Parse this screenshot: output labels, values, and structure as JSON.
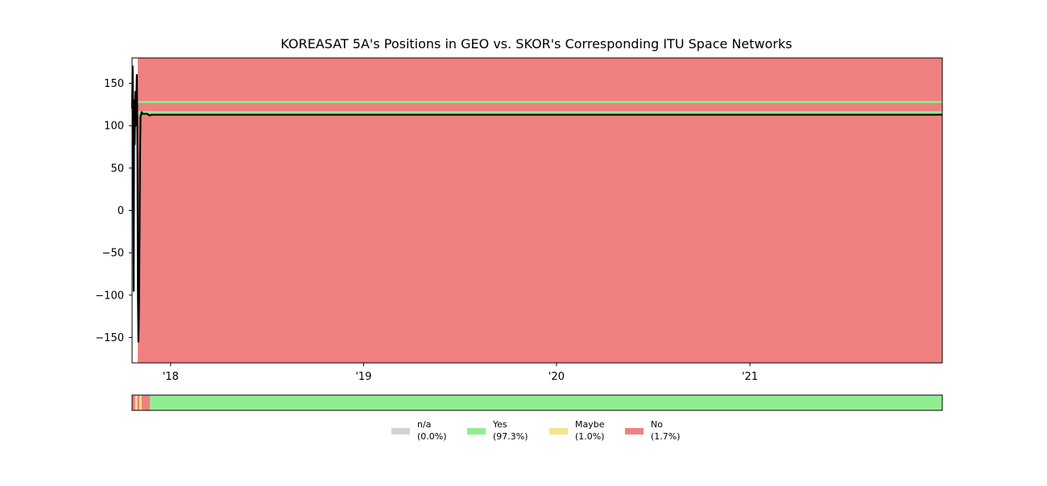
{
  "chart_data": {
    "type": "line",
    "title": "KOREASAT 5A's Positions in GEO vs. SKOR's Corresponding ITU Space Networks",
    "xlabel": "",
    "ylabel": "",
    "x_tick_labels": [
      "'18",
      "'19",
      "'20",
      "'21"
    ],
    "x_tick_dates": [
      "2018-01-01",
      "2019-01-01",
      "2020-01-01",
      "2021-01-01"
    ],
    "x_range": [
      "2017-10-20",
      "2021-12-31"
    ],
    "y_range": [
      -180,
      180
    ],
    "y_ticks": [
      150,
      100,
      50,
      0,
      -50,
      -100,
      -150
    ],
    "y_tick_labels": [
      "150",
      "100",
      "50",
      "0",
      "−50",
      "−100",
      "−150"
    ],
    "grid": false,
    "background_status": "No",
    "itu_network_lines": [
      128,
      116,
      113.5
    ],
    "position_series": {
      "x": [
        "2017-10-20",
        "2017-10-21",
        "2017-10-22",
        "2017-10-23",
        "2017-10-24",
        "2017-10-25",
        "2017-10-26",
        "2017-10-27",
        "2017-10-28",
        "2017-10-29",
        "2017-10-30",
        "2017-10-31",
        "2017-11-01",
        "2017-11-02",
        "2017-11-03",
        "2017-11-04",
        "2017-11-05",
        "2017-11-07",
        "2017-11-09",
        "2017-11-10",
        "2017-11-12",
        "2017-11-15",
        "2017-11-18",
        "2017-11-22",
        "2017-11-25",
        "2017-12-01",
        "2021-12-31"
      ],
      "y": [
        120,
        170,
        112,
        -95,
        130,
        78,
        140,
        100,
        125,
        160,
        95,
        -100,
        -155,
        -120,
        -40,
        60,
        110,
        116,
        114,
        114,
        114,
        114,
        114,
        112,
        113,
        113,
        113
      ]
    },
    "status_bar": {
      "segments": [
        {
          "start": "2017-10-20",
          "end": "2017-10-26",
          "status": "No"
        },
        {
          "start": "2017-10-26",
          "end": "2017-10-30",
          "status": "Maybe"
        },
        {
          "start": "2017-10-30",
          "end": "2017-11-03",
          "status": "No"
        },
        {
          "start": "2017-11-03",
          "end": "2017-11-07",
          "status": "Maybe"
        },
        {
          "start": "2017-11-07",
          "end": "2017-11-23",
          "status": "No"
        },
        {
          "start": "2017-11-23",
          "end": "2021-12-31",
          "status": "Yes"
        }
      ]
    },
    "legend": {
      "placement": "bottom-center",
      "entries": [
        {
          "label": "n/a",
          "pct": "(0.0%)",
          "color": "#d3d3d3"
        },
        {
          "label": "Yes",
          "pct": "(97.3%)",
          "color": "#90ee90"
        },
        {
          "label": "Maybe",
          "pct": "(1.0%)",
          "color": "#f0e68c"
        },
        {
          "label": "No",
          "pct": "(1.7%)",
          "color": "#f08080"
        }
      ]
    }
  },
  "colors": {
    "no": "#f08080",
    "yes": "#90ee90",
    "maybe": "#f0e68c",
    "na": "#d3d3d3",
    "position_line": "#000000"
  }
}
